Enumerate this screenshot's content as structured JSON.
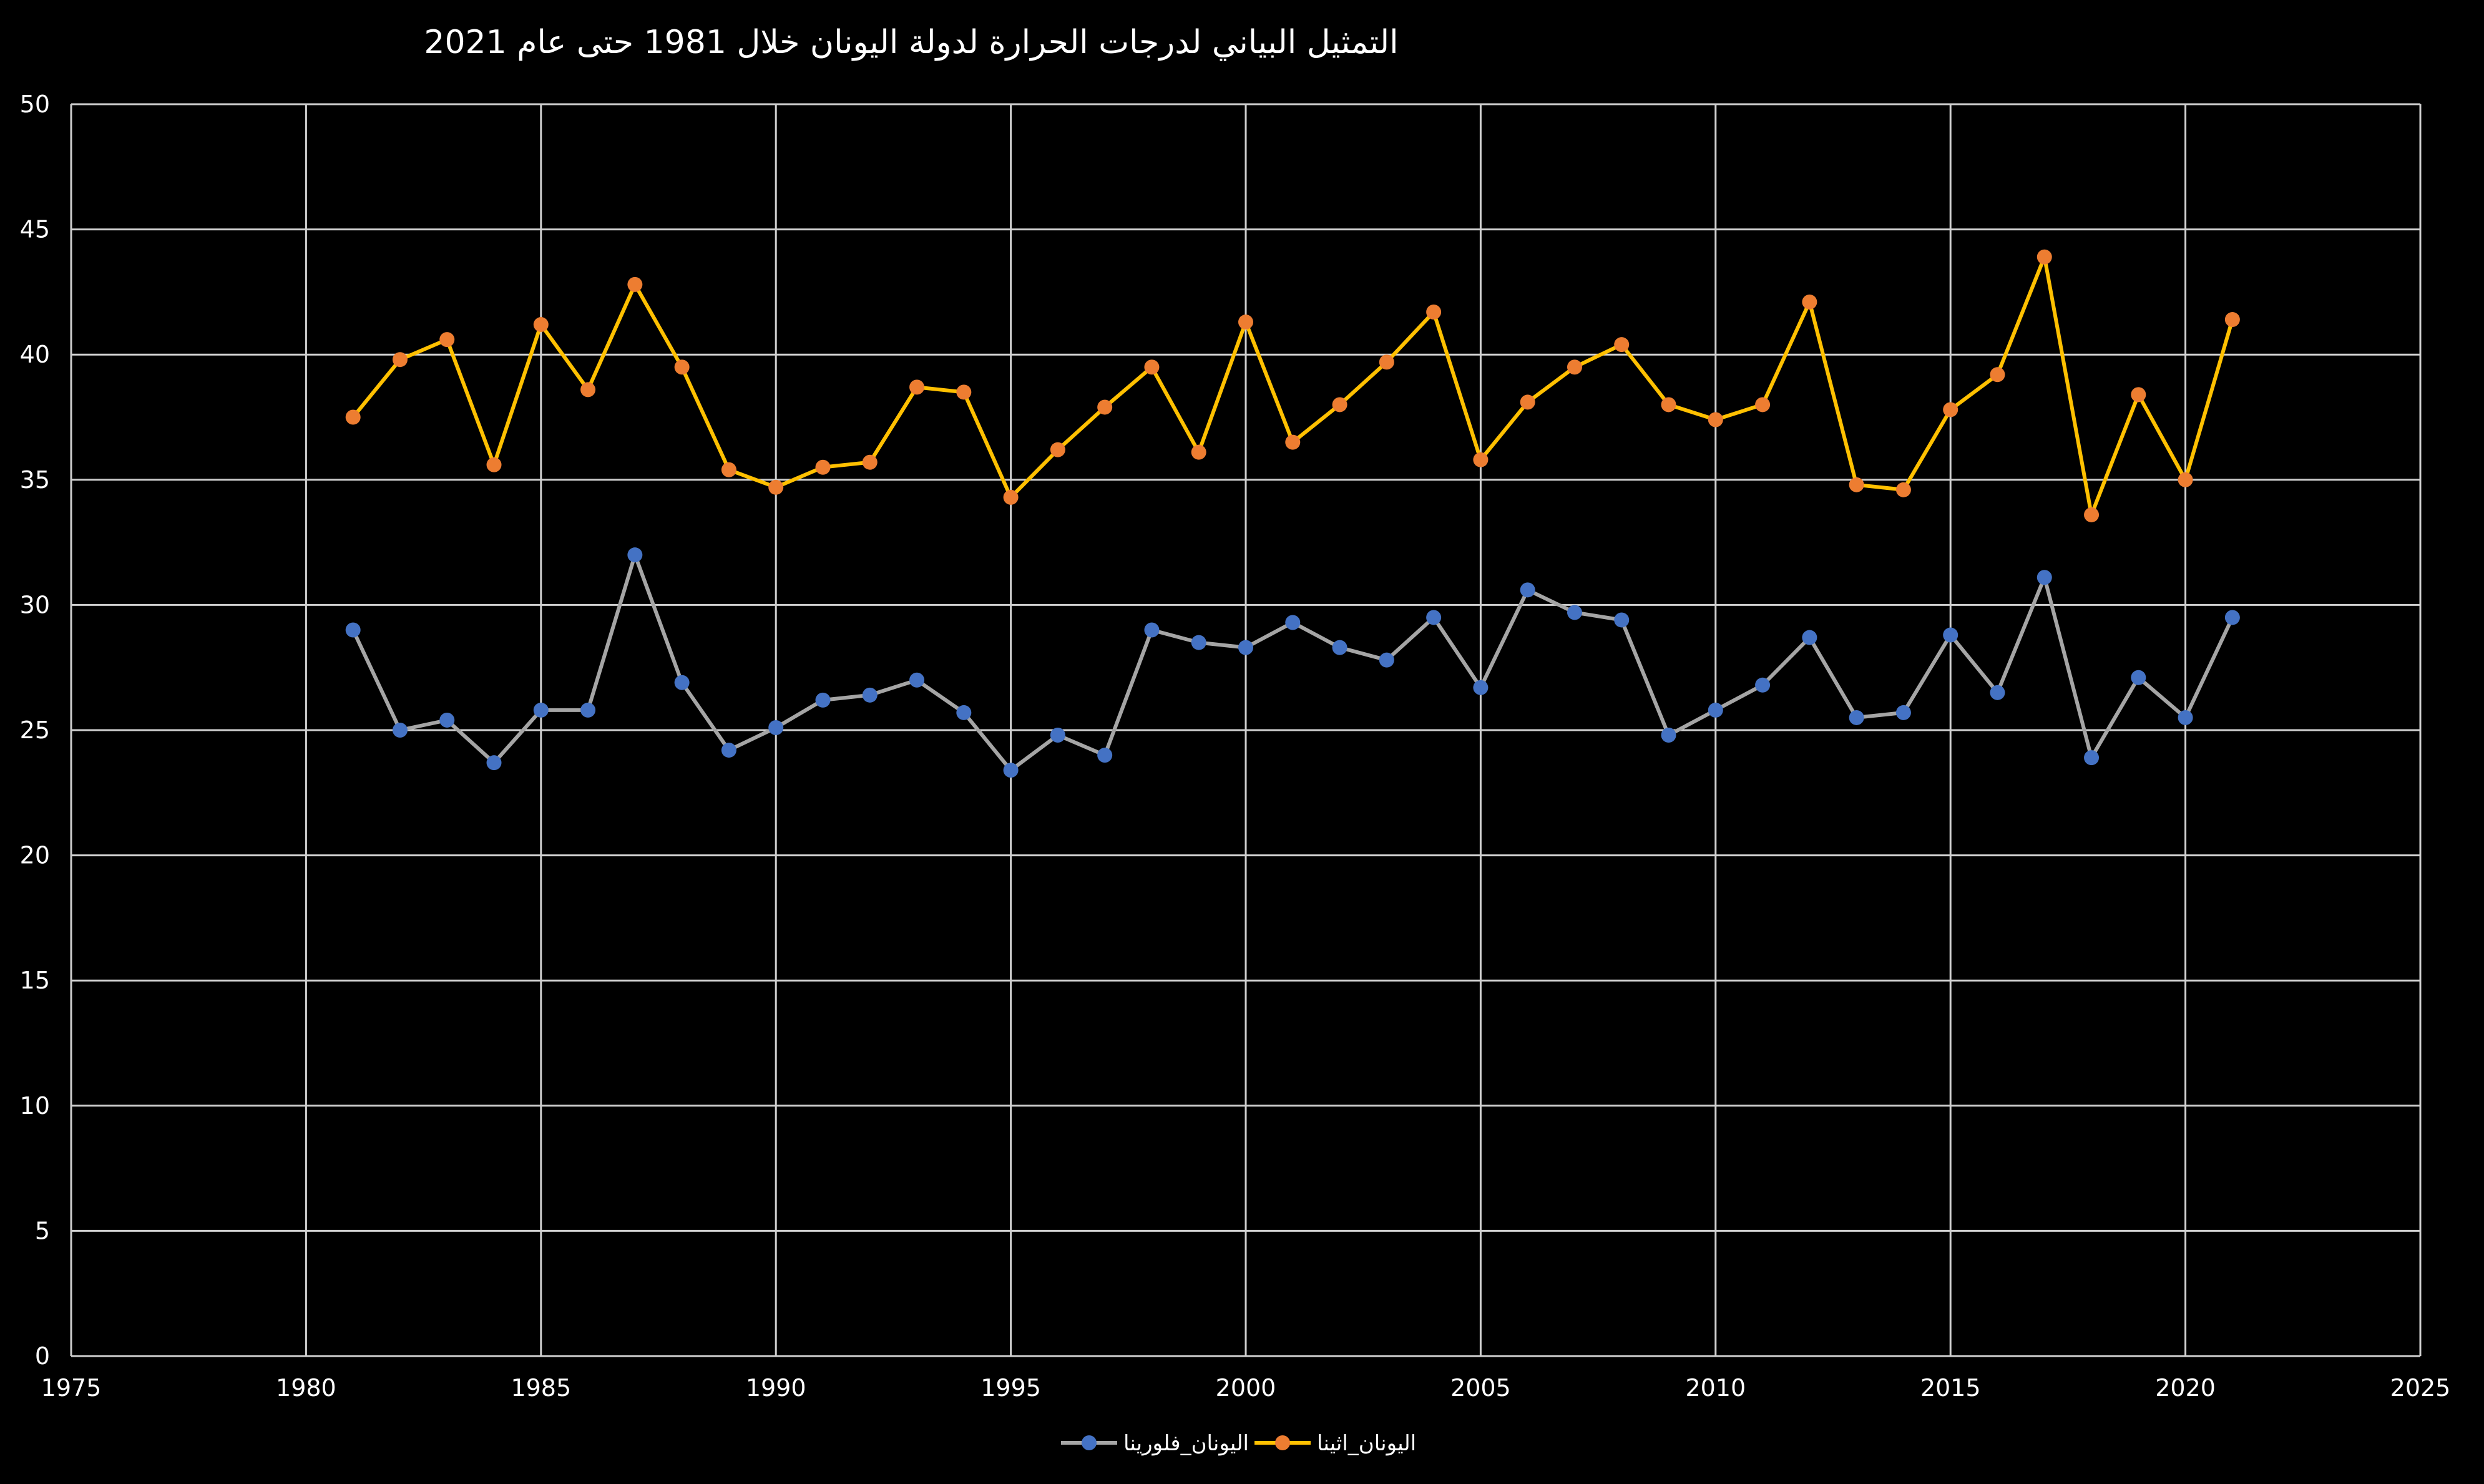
{
  "chart_data": {
    "type": "scatter",
    "title": "التمثيل البياني لدرجات الحرارة لدولة اليونان خلال 1981 حتى عام 2021",
    "xlabel": "",
    "ylabel": "",
    "xlim": [
      1975,
      2025
    ],
    "ylim": [
      0,
      50
    ],
    "xticks": [
      1975,
      1980,
      1985,
      1990,
      1995,
      2000,
      2005,
      2010,
      2015,
      2020,
      2025
    ],
    "yticks": [
      0,
      5,
      10,
      15,
      20,
      25,
      30,
      35,
      40,
      45,
      50
    ],
    "grid": true,
    "legend_position": "bottom",
    "mode": "lines+markers",
    "x": [
      1981,
      1982,
      1983,
      1984,
      1985,
      1986,
      1987,
      1988,
      1989,
      1990,
      1991,
      1992,
      1993,
      1994,
      1995,
      1996,
      1997,
      1998,
      1999,
      2000,
      2001,
      2002,
      2003,
      2004,
      2005,
      2006,
      2007,
      2008,
      2009,
      2010,
      2011,
      2012,
      2013,
      2014,
      2015,
      2016,
      2017,
      2018,
      2019,
      2020,
      2021
    ],
    "series": [
      {
        "name": "اليونان_فلورينا",
        "line_color": "#A5A5A5",
        "marker_color": "#4472C4",
        "values": [
          29.0,
          25.0,
          25.4,
          23.7,
          25.8,
          25.8,
          32.0,
          26.9,
          24.2,
          25.1,
          26.2,
          26.4,
          27.0,
          25.7,
          23.4,
          24.8,
          24.0,
          29.0,
          28.5,
          28.3,
          29.3,
          28.3,
          27.8,
          29.5,
          26.7,
          30.6,
          29.7,
          29.4,
          24.8,
          25.8,
          26.8,
          28.7,
          25.5,
          25.7,
          28.8,
          26.5,
          31.1,
          23.9,
          27.1,
          25.5,
          29.5
        ]
      },
      {
        "name": "اليونان_اثينا",
        "line_color": "#FFC000",
        "marker_color": "#ED7D31",
        "values": [
          37.5,
          39.8,
          40.6,
          35.6,
          41.2,
          38.6,
          42.8,
          39.5,
          35.4,
          34.7,
          35.5,
          35.7,
          38.7,
          38.5,
          34.3,
          36.2,
          37.9,
          39.5,
          36.1,
          41.3,
          36.5,
          38.0,
          39.7,
          41.7,
          35.8,
          38.1,
          39.5,
          40.4,
          38.0,
          37.4,
          38.0,
          42.1,
          34.8,
          34.6,
          37.8,
          39.2,
          43.9,
          33.6,
          38.4,
          35.0,
          41.4
        ]
      }
    ]
  }
}
